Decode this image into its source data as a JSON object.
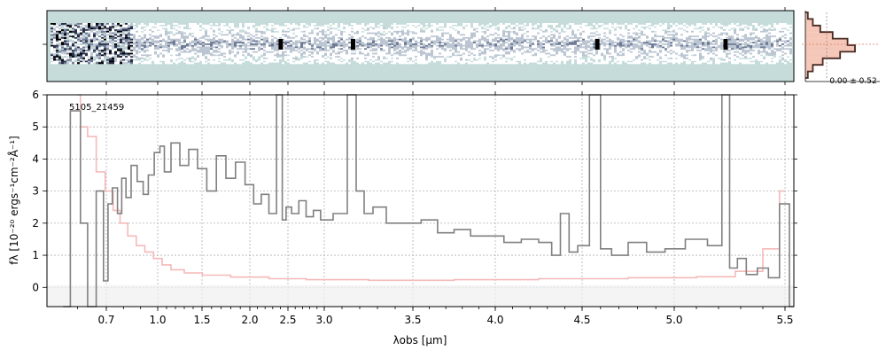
{
  "chart_data": [
    {
      "type": "heatmap",
      "description_free": true,
      "colormap": [
        "#c5dcdb",
        "#ffffff",
        "#bcc6d2",
        "#6f7b96",
        "#2a2f48",
        "#000000"
      ],
      "xlim": [
        0.5,
        5.52
      ]
    },
    {
      "type": "line",
      "object_label": "5105_21459",
      "xlabel": "λobs [μm]",
      "ylabel": "fλ [10⁻²⁰ ergs⁻¹cm⁻²Å⁻¹]",
      "x_axis_scale": "stretched (dense at short wavelengths)",
      "x_ticks": [
        "0.7",
        "1.0",
        "1.5",
        "2.0",
        "2.5",
        "3.0",
        "3.5",
        "4.0",
        "4.5",
        "5.0",
        "5.5"
      ],
      "y_ticks": [
        "0",
        "1",
        "2",
        "3",
        "4",
        "5",
        "6"
      ],
      "ylim": [
        -0.6,
        6.0
      ],
      "grid": true,
      "series": [
        {
          "role": "flux",
          "color": "#808080",
          "points": [
            [
              0.55,
              -1.0
            ],
            [
              0.6,
              5.5
            ],
            [
              0.62,
              2.0
            ],
            [
              0.65,
              -0.8
            ],
            [
              0.68,
              3.0
            ],
            [
              0.7,
              0.2
            ],
            [
              0.72,
              2.6
            ],
            [
              0.75,
              3.1
            ],
            [
              0.78,
              2.3
            ],
            [
              0.8,
              3.4
            ],
            [
              0.83,
              2.8
            ],
            [
              0.86,
              3.8
            ],
            [
              0.9,
              3.3
            ],
            [
              0.93,
              2.9
            ],
            [
              0.96,
              3.5
            ],
            [
              1.0,
              4.2
            ],
            [
              1.05,
              4.4
            ],
            [
              1.1,
              3.6
            ],
            [
              1.2,
              4.5
            ],
            [
              1.3,
              3.8
            ],
            [
              1.4,
              4.3
            ],
            [
              1.5,
              3.7
            ],
            [
              1.6,
              3.0
            ],
            [
              1.7,
              4.1
            ],
            [
              1.8,
              3.4
            ],
            [
              1.9,
              3.9
            ],
            [
              2.0,
              3.2
            ],
            [
              2.1,
              2.6
            ],
            [
              2.2,
              2.9
            ],
            [
              2.3,
              2.3
            ],
            [
              2.4,
              6.0
            ],
            [
              2.45,
              2.1
            ],
            [
              2.5,
              2.5
            ],
            [
              2.6,
              2.3
            ],
            [
              2.7,
              2.7
            ],
            [
              2.8,
              2.2
            ],
            [
              2.9,
              2.4
            ],
            [
              3.0,
              2.1
            ],
            [
              3.1,
              2.3
            ],
            [
              3.16,
              6.0
            ],
            [
              3.2,
              3.0
            ],
            [
              3.25,
              2.3
            ],
            [
              3.3,
              2.5
            ],
            [
              3.4,
              2.0
            ],
            [
              3.5,
              2.0
            ],
            [
              3.6,
              2.1
            ],
            [
              3.7,
              1.7
            ],
            [
              3.8,
              1.8
            ],
            [
              3.9,
              1.6
            ],
            [
              4.0,
              1.6
            ],
            [
              4.1,
              1.4
            ],
            [
              4.2,
              1.5
            ],
            [
              4.3,
              1.4
            ],
            [
              4.35,
              1.0
            ],
            [
              4.4,
              2.3
            ],
            [
              4.45,
              1.1
            ],
            [
              4.5,
              1.3
            ],
            [
              4.58,
              6.0
            ],
            [
              4.62,
              1.2
            ],
            [
              4.7,
              1.0
            ],
            [
              4.8,
              1.4
            ],
            [
              4.9,
              1.1
            ],
            [
              5.0,
              1.2
            ],
            [
              5.1,
              1.5
            ],
            [
              5.2,
              1.3
            ],
            [
              5.23,
              6.0
            ],
            [
              5.27,
              0.6
            ],
            [
              5.3,
              0.9
            ],
            [
              5.35,
              0.4
            ],
            [
              5.4,
              0.6
            ],
            [
              5.45,
              0.3
            ],
            [
              5.5,
              2.6
            ],
            [
              5.52,
              -0.6
            ]
          ]
        },
        {
          "role": "uncertainty",
          "color": "#f5b9b9",
          "points": [
            [
              0.6,
              6.0
            ],
            [
              0.62,
              5.0
            ],
            [
              0.65,
              4.7
            ],
            [
              0.68,
              3.6
            ],
            [
              0.72,
              3.0
            ],
            [
              0.76,
              2.4
            ],
            [
              0.8,
              2.0
            ],
            [
              0.85,
              1.6
            ],
            [
              0.9,
              1.3
            ],
            [
              0.95,
              1.1
            ],
            [
              1.0,
              0.9
            ],
            [
              1.1,
              0.7
            ],
            [
              1.2,
              0.55
            ],
            [
              1.4,
              0.45
            ],
            [
              1.6,
              0.38
            ],
            [
              2.0,
              0.32
            ],
            [
              2.5,
              0.27
            ],
            [
              3.0,
              0.24
            ],
            [
              3.5,
              0.22
            ],
            [
              4.0,
              0.24
            ],
            [
              4.5,
              0.27
            ],
            [
              5.0,
              0.3
            ],
            [
              5.2,
              0.33
            ],
            [
              5.35,
              0.5
            ],
            [
              5.45,
              1.2
            ],
            [
              5.5,
              3.0
            ]
          ]
        }
      ]
    },
    {
      "type": "bar",
      "panel": "histogram",
      "label": "0.00 ± 0.52",
      "fill_color": "#f4c7b8",
      "edge_color": "#4a2a22",
      "values": [
        0.05,
        0.15,
        0.3,
        0.55,
        0.85,
        1.0,
        0.7,
        0.35,
        0.15,
        0.05
      ]
    }
  ]
}
